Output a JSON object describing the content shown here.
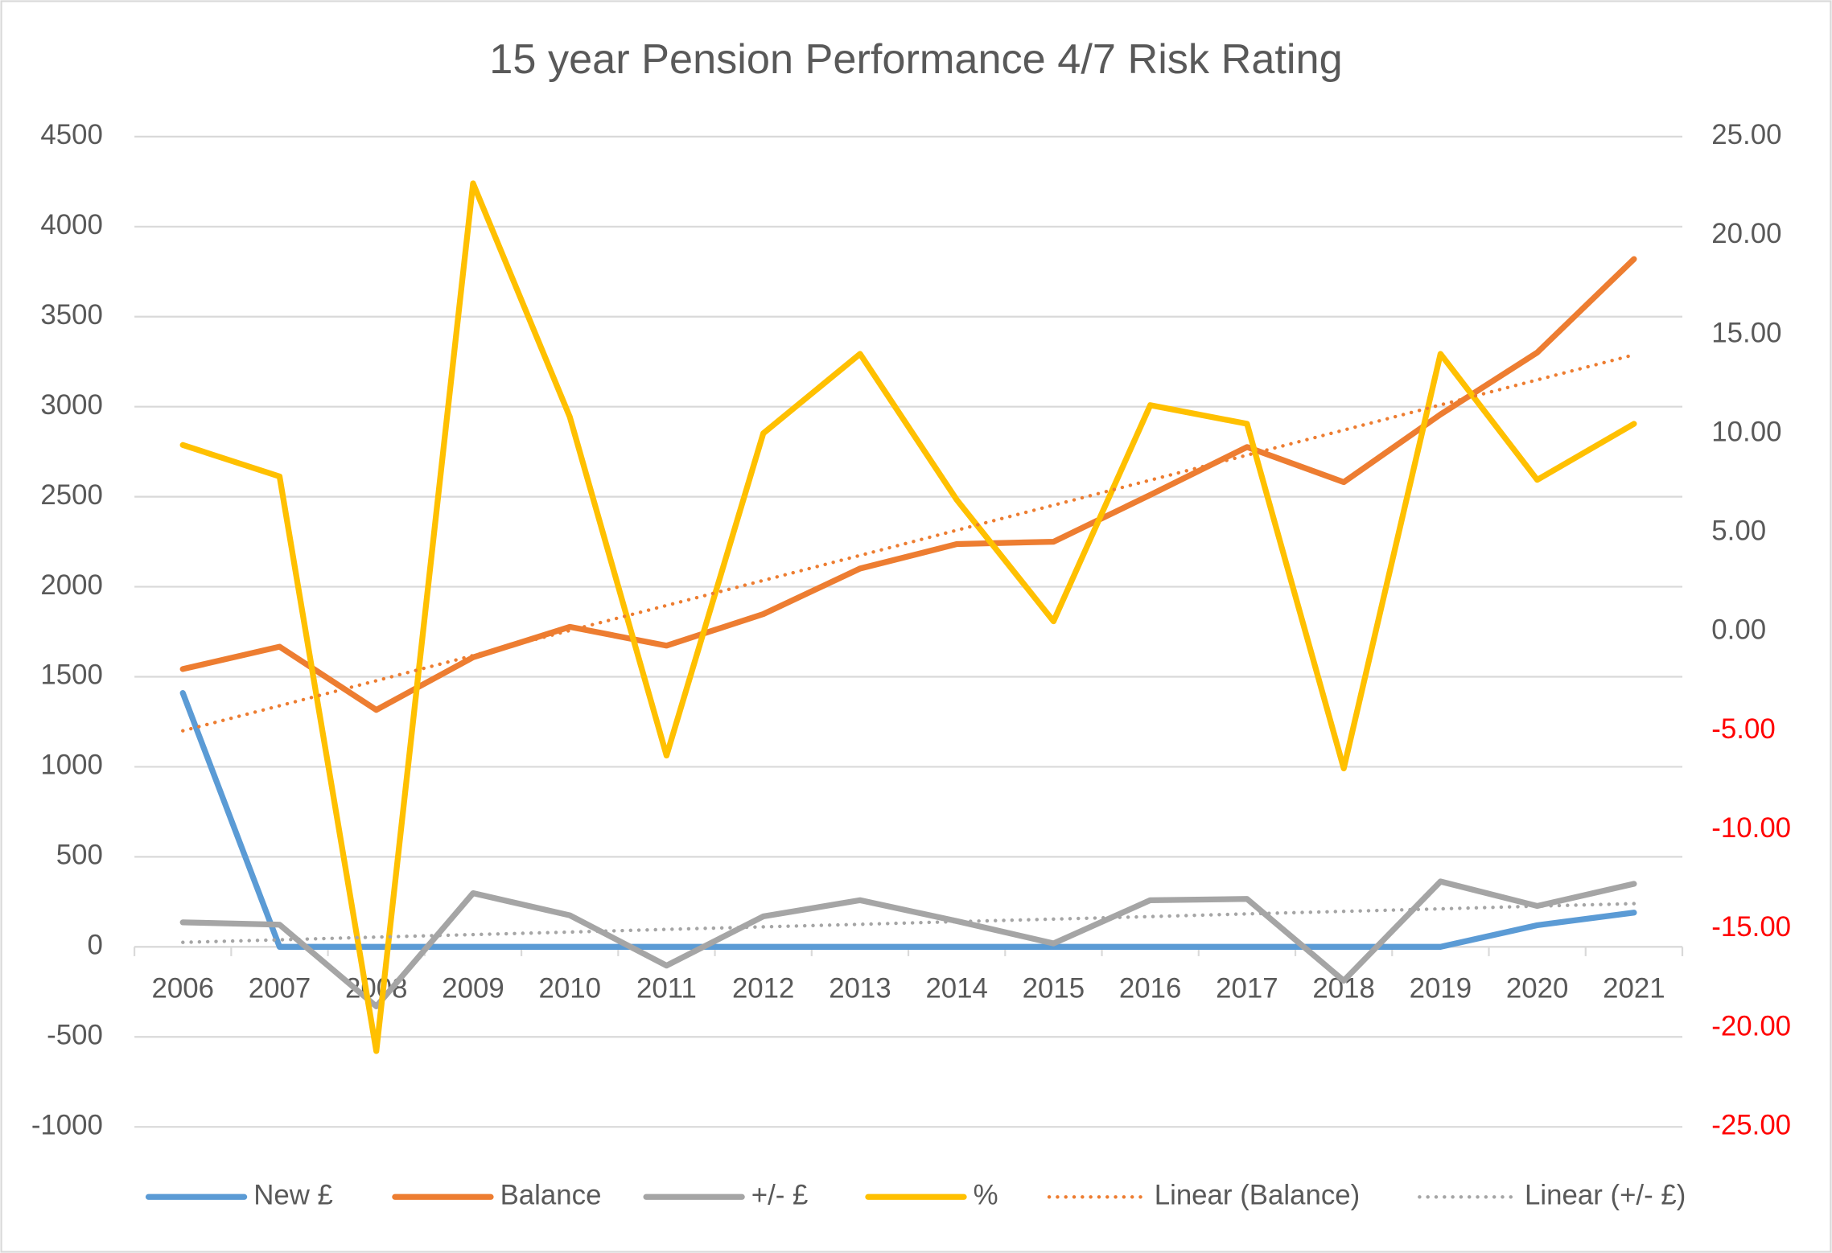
{
  "chart_data": {
    "type": "line",
    "title": "15 year Pension Performance 4/7 Risk Rating",
    "categories": [
      "2006",
      "2007",
      "2008",
      "2009",
      "2010",
      "2011",
      "2012",
      "2013",
      "2014",
      "2015",
      "2016",
      "2017",
      "2018",
      "2019",
      "2020",
      "2021"
    ],
    "series": [
      {
        "name": "New £",
        "color": "#5b9bd5",
        "values": [
          1410,
          0,
          0,
          0,
          0,
          0,
          0,
          0,
          0,
          0,
          0,
          0,
          0,
          0,
          120,
          190
        ]
      },
      {
        "name": "Balance",
        "color": "#ed7d31",
        "values": [
          1543,
          1667,
          1316,
          1608,
          1777,
          1673,
          1848,
          2101,
          2237,
          2250,
          2510,
          2776,
          2581,
          2957,
          3301,
          3820
        ]
      },
      {
        "name": "+/- £",
        "color": "#a5a5a5",
        "values": [
          136,
          123,
          -331,
          298,
          175,
          -104,
          169,
          259,
          143,
          19,
          259,
          266,
          -188,
          363,
          227,
          350
        ]
      },
      {
        "name": "%",
        "color": "#ffc000",
        "axis": "y2",
        "values": [
          9.43,
          7.84,
          -21.17,
          22.64,
          10.85,
          -6.25,
          10.02,
          14.03,
          6.66,
          0.53,
          11.44,
          10.5,
          -6.9,
          14.03,
          7.67,
          10.5
        ]
      },
      {
        "name": "Linear (Balance)",
        "color": "#ed7d31",
        "dash": "dot",
        "values": [
          1200,
          1339,
          1478,
          1618,
          1757,
          1896,
          2035,
          2174,
          2314,
          2453,
          2592,
          2731,
          2870,
          3010,
          3149,
          3288
        ]
      },
      {
        "name": "Linear (+/- £)",
        "color": "#a5a5a5",
        "dash": "dot",
        "values": [
          25,
          39,
          54,
          68,
          82,
          97,
          111,
          125,
          140,
          154,
          168,
          183,
          197,
          211,
          226,
          240
        ]
      }
    ],
    "ylim": [
      -1000,
      4500
    ],
    "yticks": [
      -1000,
      -500,
      0,
      500,
      1000,
      1500,
      2000,
      2500,
      3000,
      3500,
      4000,
      4500
    ],
    "y2lim": [
      -25,
      25
    ],
    "y2ticks": [
      {
        "value": -25,
        "label": "-25.00"
      },
      {
        "value": -20,
        "label": "-20.00"
      },
      {
        "value": -15,
        "label": "-15.00"
      },
      {
        "value": -10,
        "label": "-10.00"
      },
      {
        "value": -5,
        "label": "-5.00"
      },
      {
        "value": 0,
        "label": "0.00"
      },
      {
        "value": 5,
        "label": "5.00"
      },
      {
        "value": 10,
        "label": "10.00"
      },
      {
        "value": 15,
        "label": "15.00"
      },
      {
        "value": 20,
        "label": "20.00"
      },
      {
        "value": 25,
        "label": "25.00"
      }
    ],
    "y2_negative_tick_color": "#ff0000",
    "grid": true,
    "legend": "bottom"
  }
}
